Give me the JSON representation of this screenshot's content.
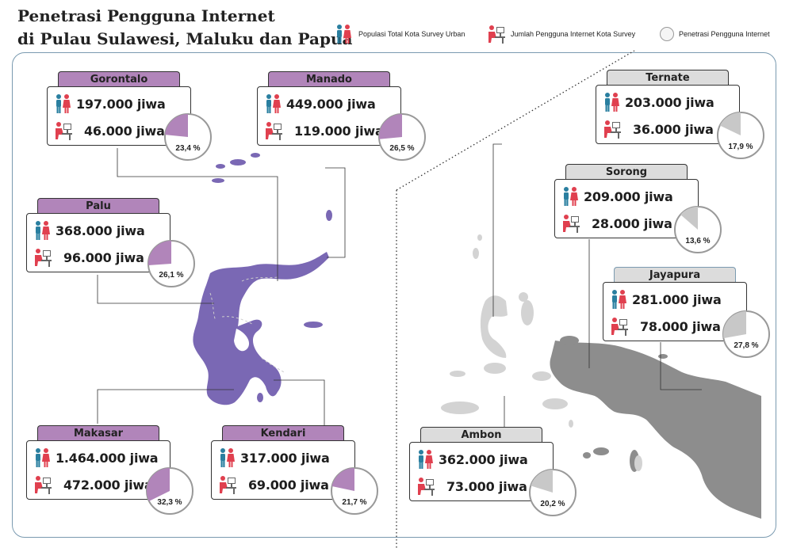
{
  "title_line1": "Penetrasi Pengguna Internet",
  "title_line2": "di Pulau Sulawesi, Maluku dan Papua",
  "legend": {
    "population": "Populasi Total Kota Survey Urban",
    "users": "Jumlah Pengguna Internet Kota Survey",
    "penetration": "Penetrasi Pengguna Internet"
  },
  "colors": {
    "sulawesi_tab": "#b185ba",
    "sulawesi_pie": "#b185ba",
    "maluku_papua_tab": "#dcdcdc",
    "maluku_papua_pie": "#c8c8c8",
    "map_sulawesi": "#7a68b4",
    "map_papua": "#8d8d8d",
    "frame": "#7a9ab0"
  },
  "icons": {
    "population": "people-icon",
    "users": "computer-user-icon"
  },
  "cities": [
    {
      "key": "gorontalo",
      "name": "Gorontalo",
      "population": "197.000 jiwa",
      "users": "46.000 jiwa",
      "penetration_label": "23,4 %",
      "penetration": 23.4,
      "theme": "purple"
    },
    {
      "key": "manado",
      "name": "Manado",
      "population": "449.000 jiwa",
      "users": "119.000 jiwa",
      "penetration_label": "26,5 %",
      "penetration": 26.5,
      "theme": "purple"
    },
    {
      "key": "palu",
      "name": "Palu",
      "population": "368.000 jiwa",
      "users": "96.000 jiwa",
      "penetration_label": "26,1 %",
      "penetration": 26.1,
      "theme": "purple"
    },
    {
      "key": "makasar",
      "name": "Makasar",
      "population": "1.464.000 jiwa",
      "users": "472.000 jiwa",
      "penetration_label": "32,3 %",
      "penetration": 32.3,
      "theme": "purple"
    },
    {
      "key": "kendari",
      "name": "Kendari",
      "population": "317.000 jiwa",
      "users": "69.000 jiwa",
      "penetration_label": "21,7 %",
      "penetration": 21.7,
      "theme": "purple"
    },
    {
      "key": "ternate",
      "name": "Ternate",
      "population": "203.000 jiwa",
      "users": "36.000 jiwa",
      "penetration_label": "17,9 %",
      "penetration": 17.9,
      "theme": "gray"
    },
    {
      "key": "sorong",
      "name": "Sorong",
      "population": "209.000 jiwa",
      "users": "28.000 jiwa",
      "penetration_label": "13,6 %",
      "penetration": 13.6,
      "theme": "gray"
    },
    {
      "key": "jayapura",
      "name": "Jayapura",
      "population": "281.000 jiwa",
      "users": "78.000 jiwa",
      "penetration_label": "27,8 %",
      "penetration": 27.8,
      "theme": "jaya"
    },
    {
      "key": "ambon",
      "name": "Ambon",
      "population": "362.000 jiwa",
      "users": "73.000 jiwa",
      "penetration_label": "20,2 %",
      "penetration": 20.2,
      "theme": "gray"
    }
  ]
}
